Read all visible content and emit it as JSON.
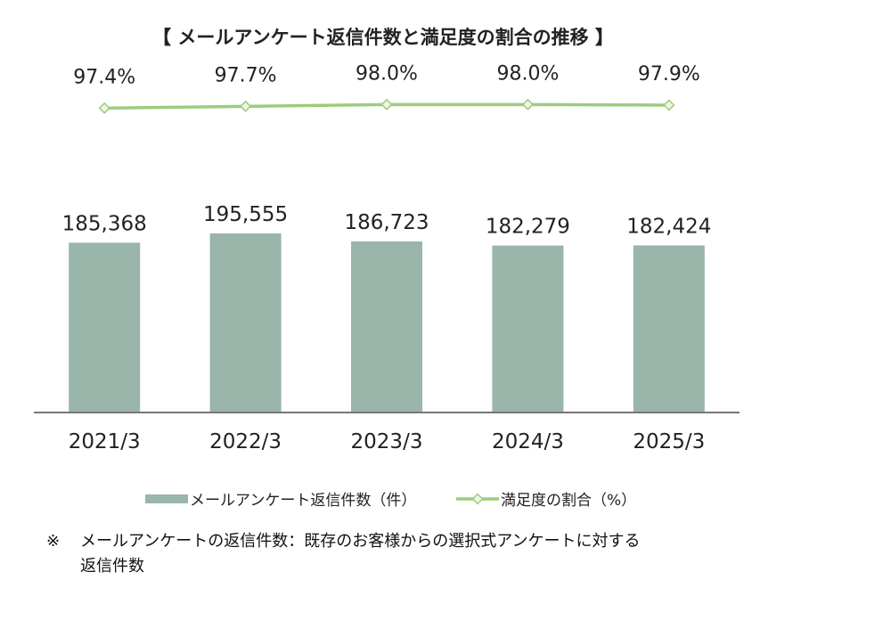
{
  "chart_data": {
    "type": "bar",
    "title": "【 メールアンケート返信件数と満足度の割合の推移 】",
    "categories": [
      "2021/3",
      "2022/3",
      "2023/3",
      "2024/3",
      "2025/3"
    ],
    "series": [
      {
        "name": "メールアンケート返信件数（件）",
        "type": "bar",
        "values": [
          185368,
          195555,
          186723,
          182279,
          182424
        ],
        "value_labels": [
          "185,368",
          "195,555",
          "186,723",
          "182,279",
          "182,424"
        ],
        "color": "#9ab5aa"
      },
      {
        "name": "満足度の割合（%）",
        "type": "line",
        "values": [
          97.4,
          97.7,
          98.0,
          98.0,
          97.9
        ],
        "value_labels": [
          "97.4%",
          "97.7%",
          "98.0%",
          "98.0%",
          "97.9%"
        ],
        "color": "#9ccc7c",
        "marker_fill": "#eef6e6"
      }
    ],
    "bar_ylim": [
      0,
      195555
    ],
    "line_ylim": [
      97.0,
      98.2
    ],
    "grid": false,
    "legend": "bottom"
  },
  "footnote": {
    "mark": "※",
    "line1": "メールアンケートの返信件数：既存のお客様からの選択式アンケートに対する",
    "line2": "返信件数"
  },
  "colors": {
    "axis": "#777777",
    "text": "#222222"
  }
}
